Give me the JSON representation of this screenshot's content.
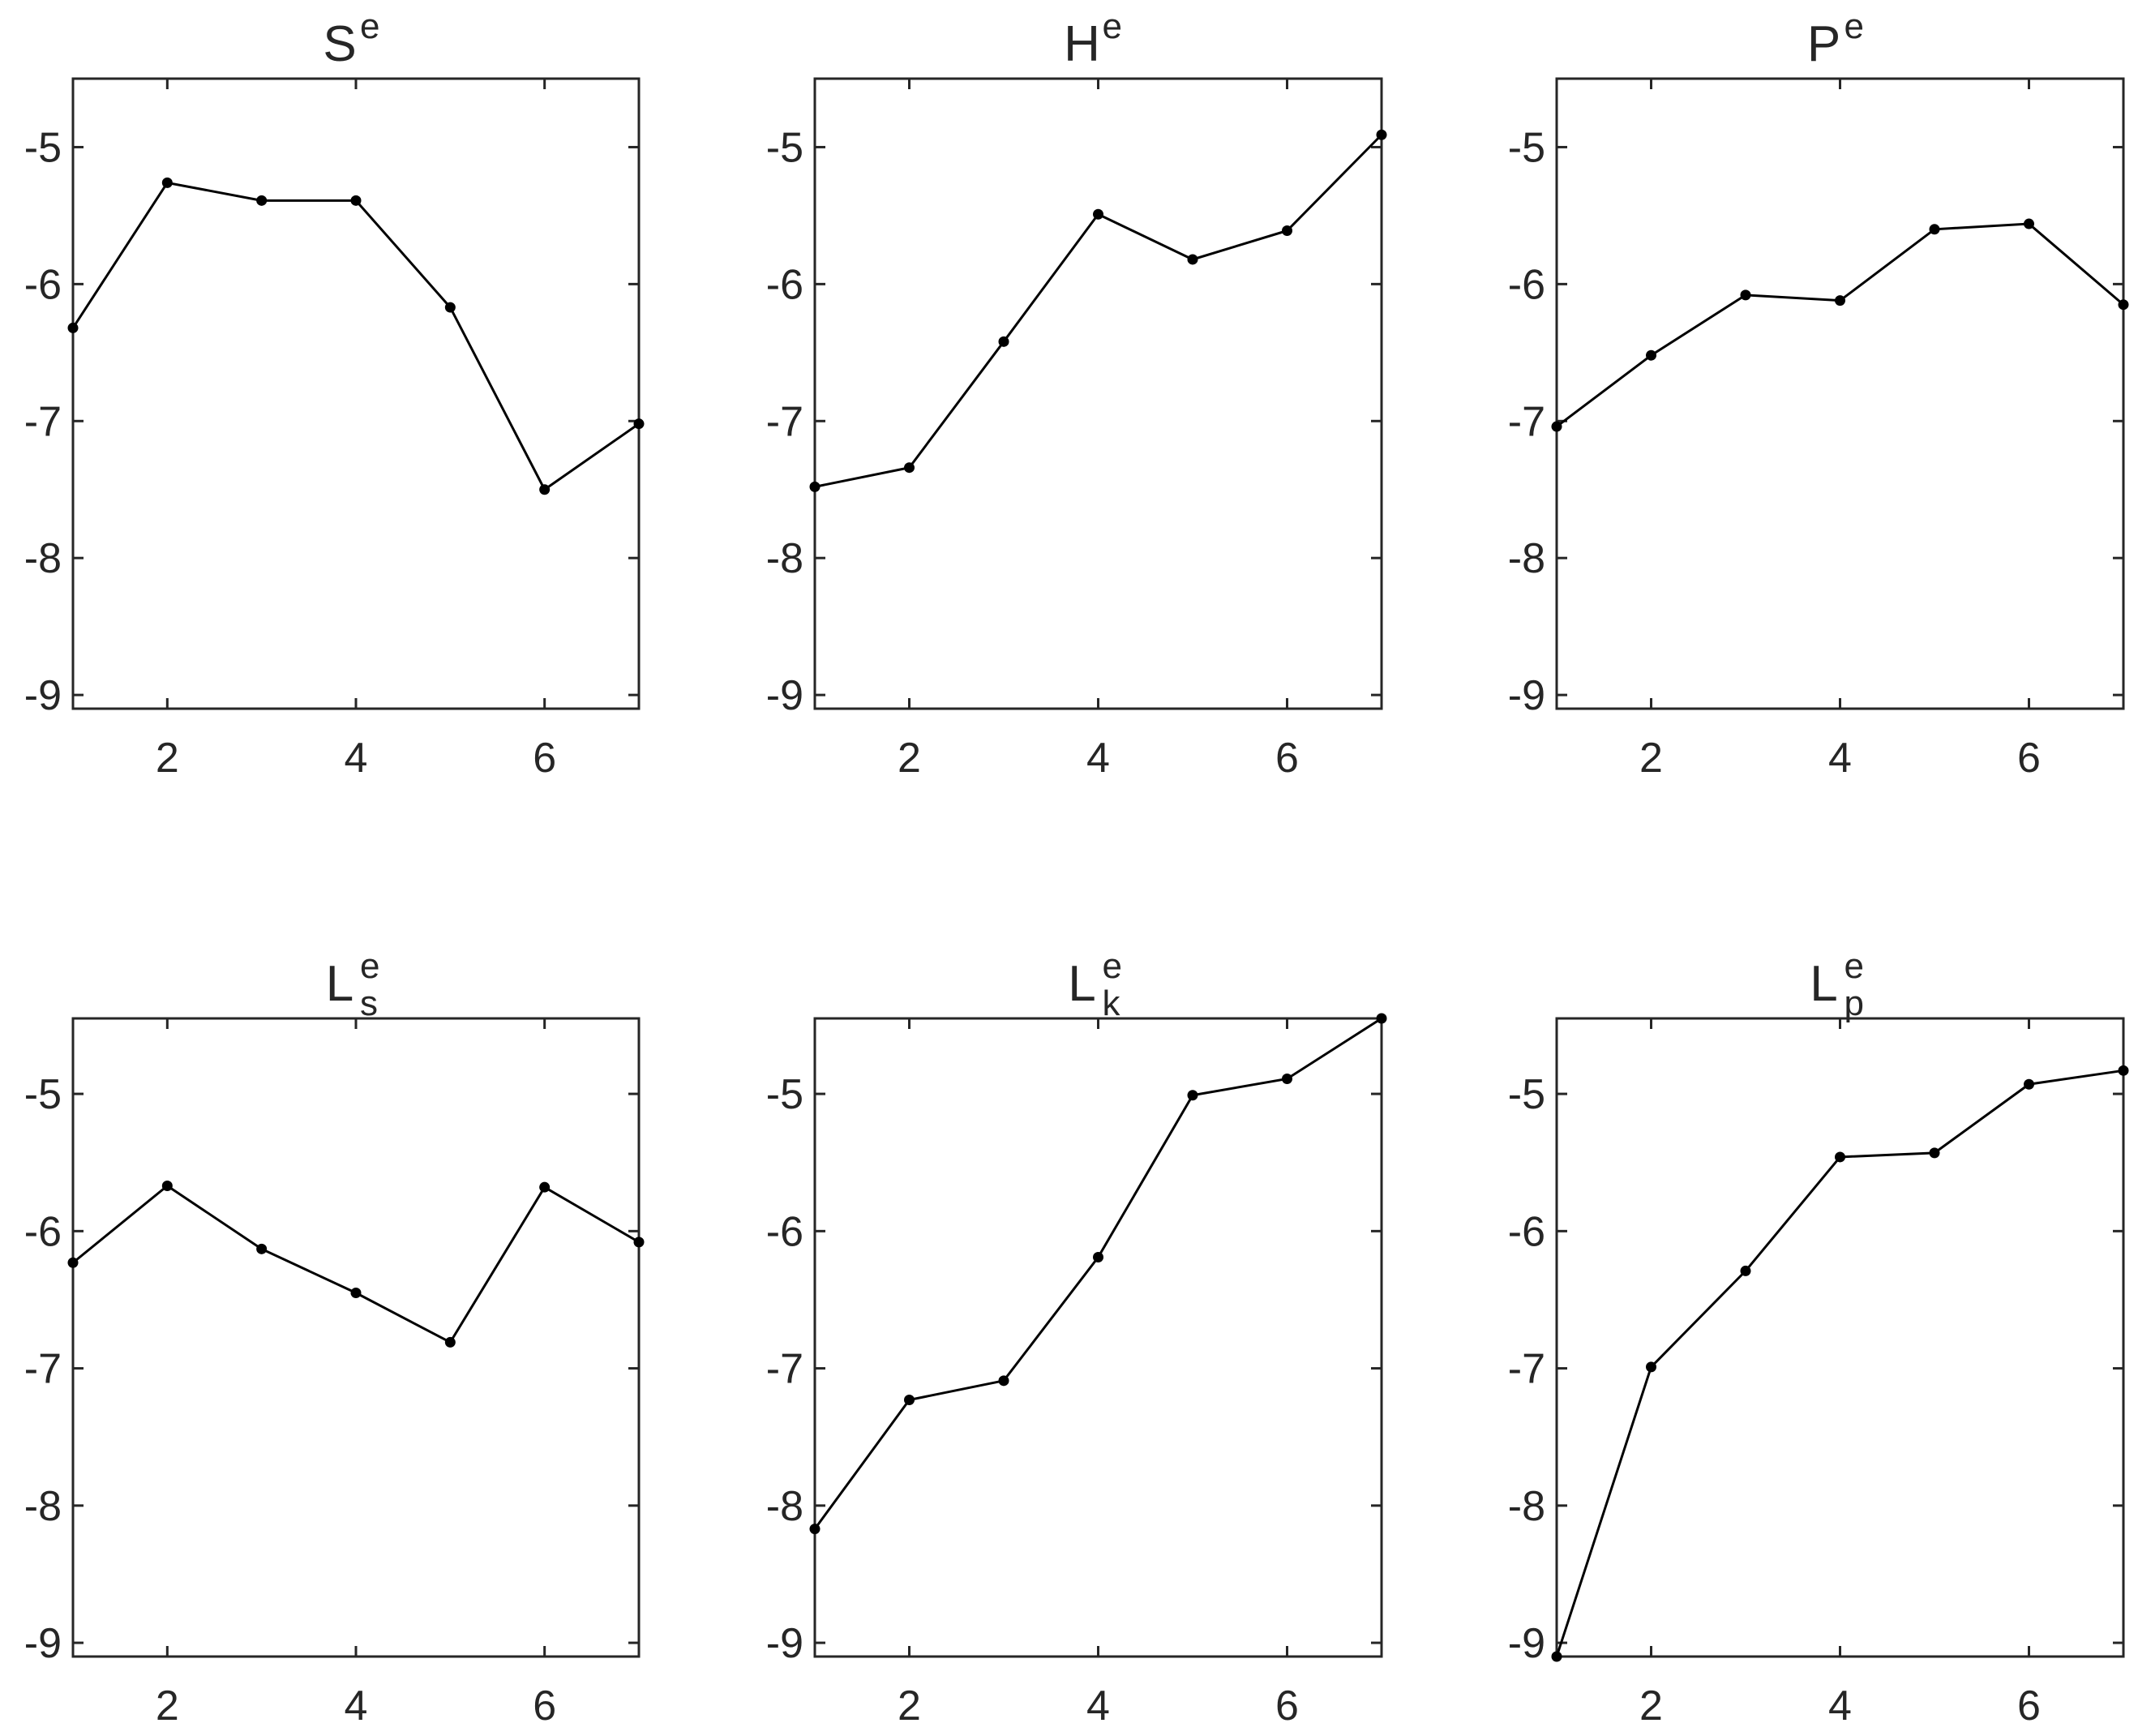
{
  "chart_data": [
    {
      "type": "line",
      "title": {
        "main": "S",
        "sup": "e",
        "sub": ""
      },
      "x": [
        1,
        2,
        3,
        4,
        5,
        6,
        7
      ],
      "series": [
        {
          "values": [
            -6.32,
            -5.26,
            -5.39,
            -5.39,
            -6.17,
            -7.5,
            -7.02
          ]
        }
      ],
      "xlim": [
        1,
        7
      ],
      "ylim": [
        -9.1,
        -4.5
      ],
      "xticks": [
        2,
        4,
        6
      ],
      "yticks": [
        -9,
        -8,
        -7,
        -6,
        -5
      ],
      "xticklabels": [
        "2",
        "4",
        "6"
      ],
      "yticklabels": [
        "-9",
        "-8",
        "-7",
        "-6",
        "-5"
      ],
      "grid": false
    },
    {
      "type": "line",
      "title": {
        "main": "H",
        "sup": "e",
        "sub": ""
      },
      "x": [
        1,
        2,
        3,
        4,
        5,
        6,
        7
      ],
      "series": [
        {
          "values": [
            -7.48,
            -7.34,
            -6.42,
            -5.49,
            -5.82,
            -5.61,
            -4.91
          ]
        }
      ],
      "xlim": [
        1,
        7
      ],
      "ylim": [
        -9.1,
        -4.5
      ],
      "xticks": [
        2,
        4,
        6
      ],
      "yticks": [
        -9,
        -8,
        -7,
        -6,
        -5
      ],
      "xticklabels": [
        "2",
        "4",
        "6"
      ],
      "yticklabels": [
        "-9",
        "-8",
        "-7",
        "-6",
        "-5"
      ],
      "grid": false
    },
    {
      "type": "line",
      "title": {
        "main": "P",
        "sup": "e",
        "sub": ""
      },
      "x": [
        1,
        2,
        3,
        4,
        5,
        6,
        7
      ],
      "series": [
        {
          "values": [
            -7.04,
            -6.52,
            -6.08,
            -6.12,
            -5.6,
            -5.56,
            -6.15
          ]
        }
      ],
      "xlim": [
        1,
        7
      ],
      "ylim": [
        -9.1,
        -4.5
      ],
      "xticks": [
        2,
        4,
        6
      ],
      "yticks": [
        -9,
        -8,
        -7,
        -6,
        -5
      ],
      "xticklabels": [
        "2",
        "4",
        "6"
      ],
      "yticklabels": [
        "-9",
        "-8",
        "-7",
        "-6",
        "-5"
      ],
      "grid": false
    },
    {
      "type": "line",
      "title": {
        "main": "L",
        "sup": "e",
        "sub": "s"
      },
      "x": [
        1,
        2,
        3,
        4,
        5,
        6,
        7
      ],
      "series": [
        {
          "values": [
            -6.23,
            -5.67,
            -6.13,
            -6.45,
            -6.81,
            -5.68,
            -6.08
          ]
        }
      ],
      "xlim": [
        1,
        7
      ],
      "ylim": [
        -9.1,
        -4.45
      ],
      "xticks": [
        2,
        4,
        6
      ],
      "yticks": [
        -9,
        -8,
        -7,
        -6,
        -5
      ],
      "xticklabels": [
        "2",
        "4",
        "6"
      ],
      "yticklabels": [
        "-9",
        "-8",
        "-7",
        "-6",
        "-5"
      ],
      "grid": false
    },
    {
      "type": "line",
      "title": {
        "main": "L",
        "sup": "e",
        "sub": "k"
      },
      "x": [
        1,
        2,
        3,
        4,
        5,
        6,
        7
      ],
      "series": [
        {
          "values": [
            -8.17,
            -7.23,
            -7.09,
            -6.19,
            -5.01,
            -4.89,
            -4.45
          ]
        }
      ],
      "xlim": [
        1,
        7
      ],
      "ylim": [
        -9.1,
        -4.45
      ],
      "xticks": [
        2,
        4,
        6
      ],
      "yticks": [
        -9,
        -8,
        -7,
        -6,
        -5
      ],
      "xticklabels": [
        "2",
        "4",
        "6"
      ],
      "yticklabels": [
        "-9",
        "-8",
        "-7",
        "-6",
        "-5"
      ],
      "grid": false
    },
    {
      "type": "line",
      "title": {
        "main": "L",
        "sup": "e",
        "sub": "p"
      },
      "x": [
        1,
        2,
        3,
        4,
        5,
        6,
        7
      ],
      "series": [
        {
          "values": [
            -9.1,
            -6.99,
            -6.29,
            -5.46,
            -5.43,
            -4.93,
            -4.83
          ]
        }
      ],
      "xlim": [
        1,
        7
      ],
      "ylim": [
        -9.1,
        -4.45
      ],
      "xticks": [
        2,
        4,
        6
      ],
      "yticks": [
        -9,
        -8,
        -7,
        -6,
        -5
      ],
      "xticklabels": [
        "2",
        "4",
        "6"
      ],
      "yticklabels": [
        "-9",
        "-8",
        "-7",
        "-6",
        "-5"
      ],
      "grid": false
    }
  ]
}
